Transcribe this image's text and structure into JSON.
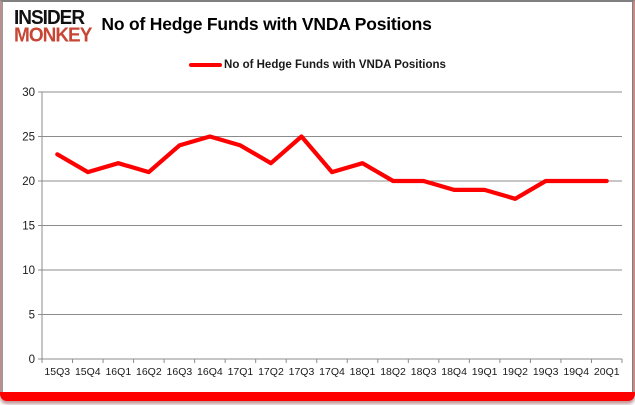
{
  "header": {
    "logo_line1": "INSIDER",
    "logo_line2": "MONKEY",
    "title": "No of Hedge Funds with VNDA Positions"
  },
  "legend": {
    "label": "No of Hedge Funds with VNDA Positions"
  },
  "chart_data": {
    "type": "line",
    "title": "No of Hedge Funds with VNDA Positions",
    "categories": [
      "15Q3",
      "15Q4",
      "16Q1",
      "16Q2",
      "16Q3",
      "16Q4",
      "17Q1",
      "17Q2",
      "17Q3",
      "17Q4",
      "18Q1",
      "18Q2",
      "18Q3",
      "18Q4",
      "19Q1",
      "19Q2",
      "19Q3",
      "19Q4",
      "20Q1"
    ],
    "series": [
      {
        "name": "No of Hedge Funds with VNDA Positions",
        "values": [
          23,
          21,
          22,
          21,
          24,
          25,
          24,
          22,
          25,
          21,
          22,
          20,
          20,
          19,
          19,
          18,
          20,
          20,
          20
        ],
        "color": "#FF0000"
      }
    ],
    "xlabel": "",
    "ylabel": "",
    "ylim": [
      0,
      30
    ],
    "yticks": [
      0,
      5,
      10,
      15,
      20,
      25,
      30
    ],
    "grid": true,
    "legend_position": "top-center"
  },
  "colors": {
    "line": "#FF0000",
    "logo_accent": "#C74634",
    "grid": "#8C8C8C",
    "axis": "#8C8C8C",
    "tick_text": "#1a1a1a",
    "frame_bottom": "#FE0000"
  }
}
